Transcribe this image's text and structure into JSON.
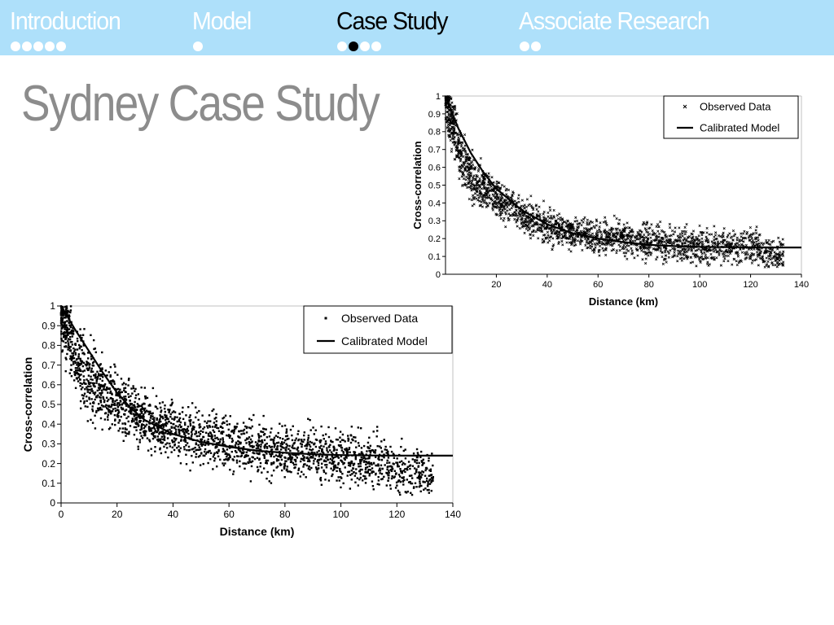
{
  "nav": {
    "sections": [
      {
        "label": "Introduction",
        "dots": 5,
        "current_dot": -1,
        "active": false
      },
      {
        "label": "Model",
        "dots": 1,
        "current_dot": -1,
        "active": false
      },
      {
        "label": "Case Study",
        "dots": 4,
        "current_dot": 1,
        "active": true
      },
      {
        "label": "Associate Research",
        "dots": 2,
        "current_dot": -1,
        "active": false
      }
    ]
  },
  "page": {
    "title": "Sydney Case Study"
  },
  "colors": {
    "nav_background": "#aee0fa",
    "title_gray": "#8c8c8c",
    "marks": "#000000"
  },
  "chart_data": [
    {
      "type": "scatter",
      "title": "",
      "xlabel": "Distance (km)",
      "ylabel": "Cross-correlation",
      "xlim": [
        0,
        140
      ],
      "ylim": [
        0,
        1
      ],
      "x_ticks": [
        20,
        40,
        60,
        80,
        100,
        120,
        140
      ],
      "y_ticks": [
        0,
        0.1,
        0.2,
        0.3,
        0.4,
        0.5,
        0.6,
        0.7,
        0.8,
        0.9,
        1
      ],
      "grid": false,
      "legend_position": "top-right",
      "marker": "cross",
      "series": [
        {
          "name": "Observed Data",
          "kind": "scatter",
          "x_range": [
            0,
            133
          ],
          "trend_points": [
            [
              0,
              1.0
            ],
            [
              5,
              0.72
            ],
            [
              10,
              0.55
            ],
            [
              20,
              0.42
            ],
            [
              30,
              0.33
            ],
            [
              40,
              0.27
            ],
            [
              60,
              0.21
            ],
            [
              80,
              0.18
            ],
            [
              100,
              0.16
            ],
            [
              120,
              0.15
            ],
            [
              133,
              0.1
            ]
          ],
          "spread": 0.06
        },
        {
          "name": "Calibrated Model",
          "kind": "line",
          "x": [
            0,
            5,
            10,
            15,
            20,
            30,
            40,
            50,
            60,
            70,
            80,
            90,
            100,
            110,
            120,
            130,
            140
          ],
          "values": [
            1.0,
            0.82,
            0.68,
            0.57,
            0.48,
            0.36,
            0.28,
            0.23,
            0.2,
            0.18,
            0.165,
            0.158,
            0.154,
            0.152,
            0.151,
            0.15,
            0.15
          ]
        }
      ]
    },
    {
      "type": "scatter",
      "title": "",
      "xlabel": "Distance (km)",
      "ylabel": "Cross-correlation",
      "xlim": [
        0,
        140
      ],
      "ylim": [
        0,
        1
      ],
      "x_ticks": [
        0,
        20,
        40,
        60,
        80,
        100,
        120,
        140
      ],
      "y_ticks": [
        0,
        0.1,
        0.2,
        0.3,
        0.4,
        0.5,
        0.6,
        0.7,
        0.8,
        0.9,
        1
      ],
      "grid": false,
      "legend_position": "top-right",
      "marker": "dot",
      "series": [
        {
          "name": "Observed Data",
          "kind": "scatter",
          "x_range": [
            0,
            133
          ],
          "trend_points": [
            [
              0,
              1.0
            ],
            [
              5,
              0.75
            ],
            [
              10,
              0.62
            ],
            [
              20,
              0.5
            ],
            [
              30,
              0.42
            ],
            [
              40,
              0.37
            ],
            [
              60,
              0.3
            ],
            [
              80,
              0.26
            ],
            [
              100,
              0.23
            ],
            [
              120,
              0.19
            ],
            [
              133,
              0.13
            ]
          ],
          "spread": 0.08
        },
        {
          "name": "Calibrated Model",
          "kind": "line",
          "x": [
            0,
            5,
            10,
            15,
            20,
            25,
            30,
            40,
            50,
            60,
            70,
            80,
            90,
            100,
            110,
            120,
            130,
            140
          ],
          "values": [
            1.0,
            0.88,
            0.77,
            0.66,
            0.56,
            0.48,
            0.42,
            0.35,
            0.31,
            0.285,
            0.265,
            0.255,
            0.247,
            0.243,
            0.241,
            0.24,
            0.24,
            0.24
          ]
        }
      ]
    }
  ]
}
